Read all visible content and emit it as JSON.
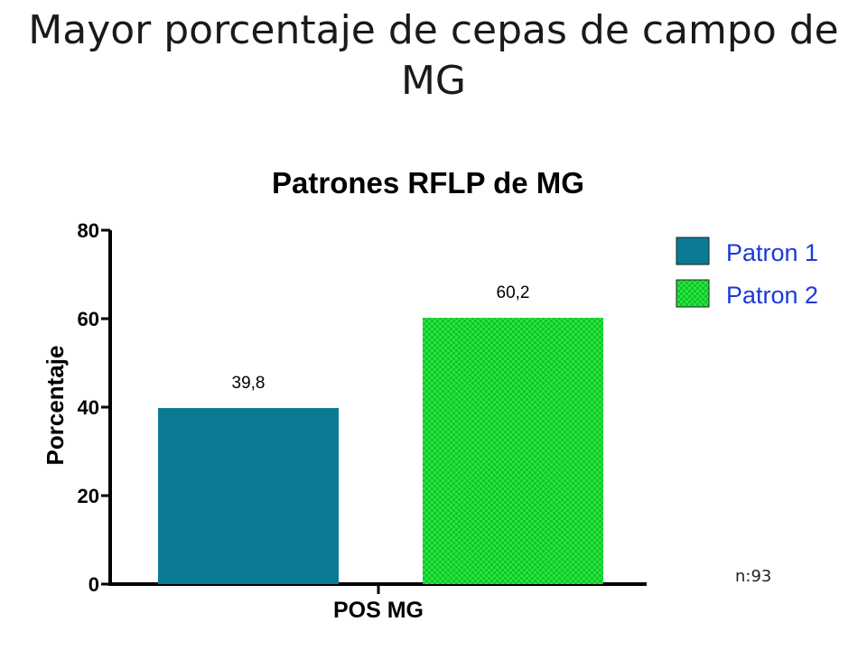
{
  "slide": {
    "title": "Mayor porcentaje de cepas de campo de MG",
    "footnote": "n:93"
  },
  "colors": {
    "patron1": "#0b7a94",
    "patron2": "#12c62a",
    "patron2_check": "#27e43f",
    "legend_text": "#1a3ad9"
  },
  "chart_data": {
    "type": "bar",
    "title": "Patrones RFLP de MG",
    "xlabel": "",
    "ylabel": "Porcentaje",
    "categories": [
      "POS MG"
    ],
    "series": [
      {
        "name": "Patron 1",
        "values": [
          39.8
        ],
        "label": "39,8"
      },
      {
        "name": "Patron 2",
        "values": [
          60.2
        ],
        "label": "60,2"
      }
    ],
    "ylim": [
      0,
      80
    ],
    "yticks": [
      0,
      20,
      40,
      60,
      80
    ],
    "grid": false,
    "legend": "top-right"
  }
}
